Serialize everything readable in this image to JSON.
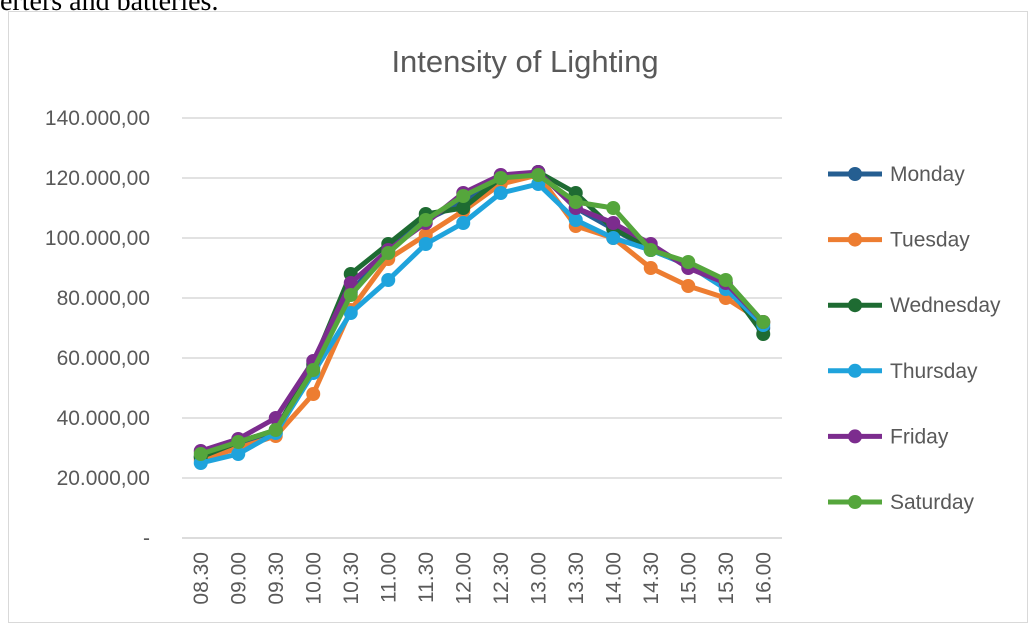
{
  "page": {
    "text_fragment": "erters and batteries."
  },
  "chart_data": {
    "type": "line",
    "title": "Intensity of Lighting",
    "xlabel": "",
    "ylabel": "",
    "categories": [
      "08.30",
      "09.00",
      "09.30",
      "10.00",
      "10.30",
      "11.00",
      "11.30",
      "12.00",
      "12.30",
      "13.00",
      "13.30",
      "14.00",
      "14.30",
      "15.00",
      "15.30",
      "16.00"
    ],
    "ylim": [
      0,
      140000
    ],
    "yticks": [
      0,
      20000,
      40000,
      60000,
      80000,
      100000,
      120000,
      140000
    ],
    "ytick_labels": [
      "-",
      "20.000,00",
      "40.000,00",
      "60.000,00",
      "80.000,00",
      "100.000,00",
      "120.000,00",
      "140.000,00"
    ],
    "grid": true,
    "legend_position": "right",
    "series": [
      {
        "name": "Monday",
        "color": "#255e91",
        "values": [
          27000,
          31000,
          35000,
          57000,
          82000,
          96000,
          106000,
          112000,
          119000,
          122000,
          110000,
          103000,
          96000,
          91000,
          84000,
          70000
        ]
      },
      {
        "name": "Tuesday",
        "color": "#ed7d31",
        "values": [
          26000,
          30000,
          34000,
          48000,
          76000,
          93000,
          101000,
          109000,
          118000,
          121000,
          104000,
          100000,
          90000,
          84000,
          80000,
          72000
        ]
      },
      {
        "name": "Wednesday",
        "color": "#1e6b32",
        "values": [
          27000,
          32000,
          36000,
          58000,
          88000,
          98000,
          108000,
          110000,
          120000,
          122000,
          115000,
          103000,
          97000,
          91000,
          85000,
          68000
        ]
      },
      {
        "name": "Thursday",
        "color": "#1fa3dc",
        "values": [
          25000,
          28000,
          35000,
          55000,
          75000,
          86000,
          98000,
          105000,
          115000,
          118000,
          106000,
          100000,
          96000,
          91000,
          83000,
          71000
        ]
      },
      {
        "name": "Friday",
        "color": "#7c2c8e",
        "values": [
          29000,
          33000,
          40000,
          59000,
          85000,
          96000,
          105000,
          115000,
          121000,
          122000,
          110000,
          105000,
          98000,
          90000,
          85000,
          72000
        ]
      },
      {
        "name": "Saturday",
        "color": "#55a63c",
        "values": [
          28000,
          32000,
          36000,
          56000,
          81000,
          95000,
          106000,
          114000,
          120000,
          121000,
          112000,
          110000,
          96000,
          92000,
          86000,
          72000
        ]
      }
    ]
  }
}
